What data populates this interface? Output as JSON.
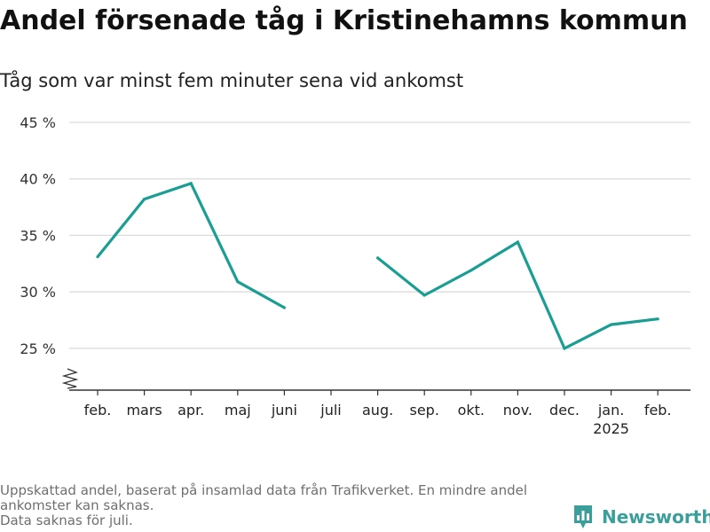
{
  "chart_data": {
    "type": "line",
    "title": "Andel försenade tåg i Kristinehamns kommun",
    "subtitle": "Tåg som var minst fem minuter sena vid ankomst",
    "categories": [
      "feb.",
      "mars",
      "apr.",
      "maj",
      "juni",
      "juli",
      "aug.",
      "sep.",
      "okt.",
      "nov.",
      "dec.",
      "jan.",
      "feb."
    ],
    "year_label": "2025",
    "y_ticks": [
      "25 %",
      "30 %",
      "35 %",
      "40 %",
      "45 %"
    ],
    "series": [
      {
        "values": [
          33.1,
          38.2,
          39.6,
          30.9,
          28.6,
          null,
          33.0,
          29.7,
          31.9,
          34.4,
          25.0,
          27.1,
          27.6
        ]
      }
    ],
    "ylim": [
      21.3,
      45
    ],
    "axis_break": true,
    "grid": true,
    "colors": {
      "line": "#1a9e94",
      "grid": "#d9d9d9",
      "axis": "#333333",
      "brand": "#3a9e9a"
    }
  },
  "footnote": {
    "line1": "Uppskattad andel, baserat på insamlad data från Trafikverket. En mindre andel",
    "line2": "ankomster kan saknas.",
    "line3": "Data saknas för juli."
  },
  "brand": {
    "name": "Newsworthy",
    "icon": "newsworthy-logo-icon"
  }
}
